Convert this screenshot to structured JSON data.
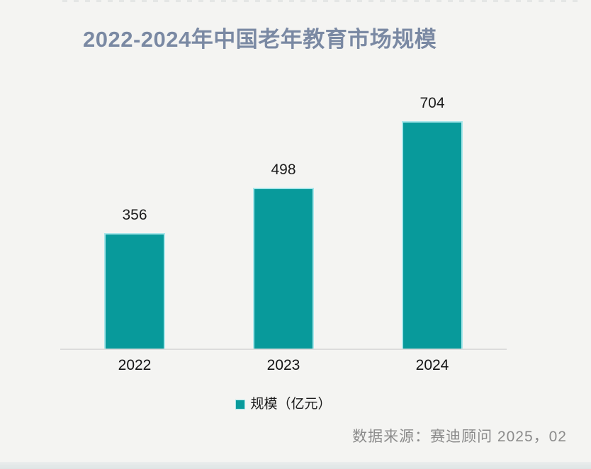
{
  "page": {
    "background_color": "#f4f4f2"
  },
  "title": {
    "text": "2022-2024年中国老年教育市场规模",
    "color": "#7a89a3"
  },
  "chart_data": {
    "type": "bar",
    "title": "2022-2024年中国老年教育市场规模",
    "categories": [
      "2022",
      "2023",
      "2024"
    ],
    "series": [
      {
        "name": "规模（亿元）",
        "values": [
          356,
          498,
          704
        ]
      }
    ],
    "value_labels": [
      "356",
      "498",
      "704"
    ],
    "xlabel": "",
    "ylabel": "规模（亿元）",
    "ylim": [
      0,
      750
    ],
    "grid": false,
    "legend_position": "bottom",
    "bar_color": "#089a9b",
    "bar_edge_color": "#a9e7eb",
    "axis_line_color": "#dcdcdc"
  },
  "legend": {
    "label": "规模（亿元）",
    "swatch_color": "#089a9b"
  },
  "source": {
    "text": "数据来源：赛迪顾问 2025，02",
    "color": "#8b8b8b"
  }
}
